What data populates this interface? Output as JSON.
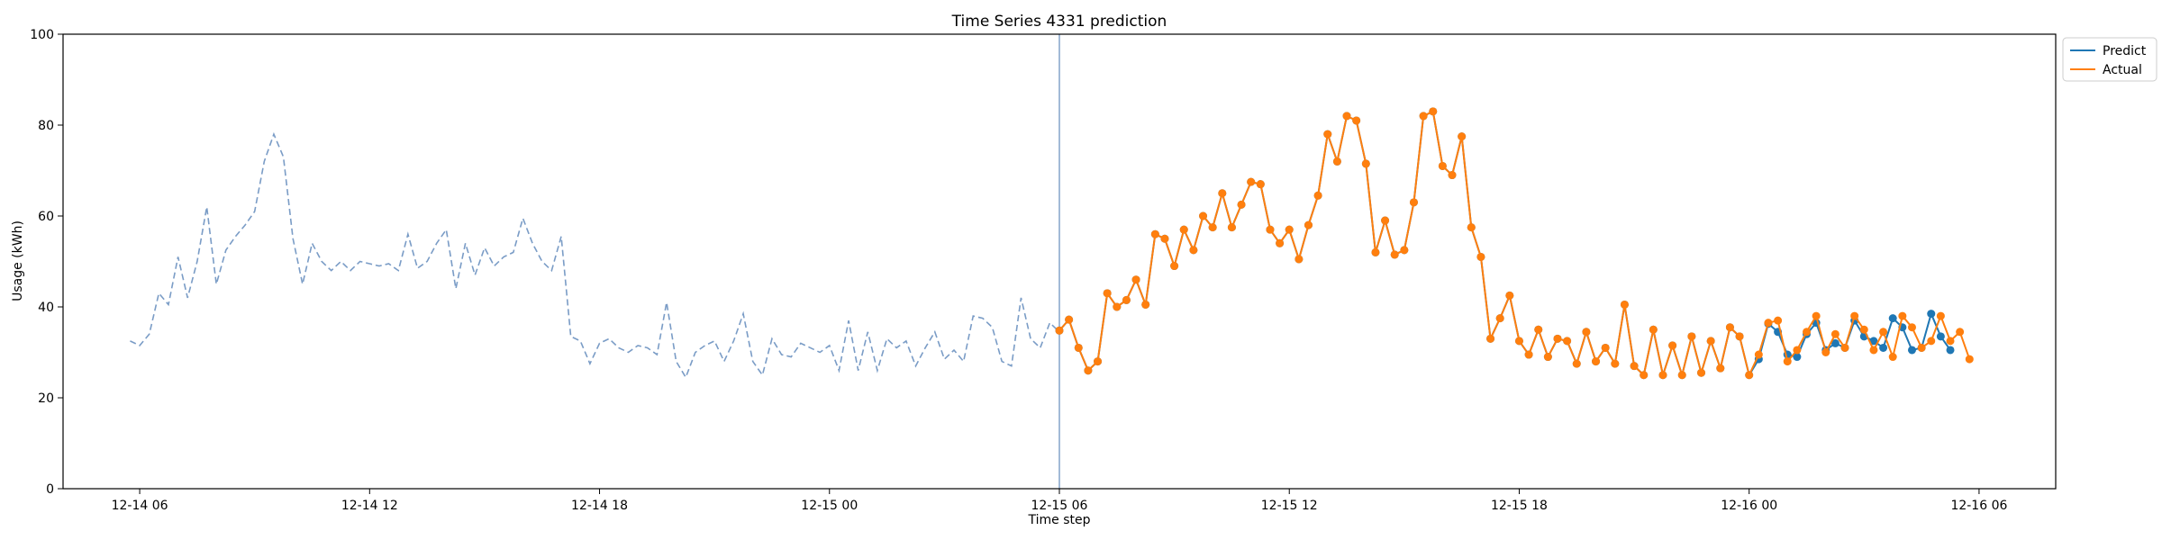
{
  "chart_data": {
    "type": "line",
    "title": "Time Series 4331 prediction",
    "xlabel": "Time step",
    "ylabel": "Usage (kWh)",
    "xlim": [
      "2025-12-14 04:00",
      "2025-12-16 08:00"
    ],
    "ylim": [
      0,
      100
    ],
    "y_ticks": [
      0,
      20,
      40,
      60,
      80,
      100
    ],
    "x_ticks": [
      {
        "t": "2025-12-14 06:00",
        "label": "12-14 06"
      },
      {
        "t": "2025-12-14 12:00",
        "label": "12-14 12"
      },
      {
        "t": "2025-12-14 18:00",
        "label": "12-14 18"
      },
      {
        "t": "2025-12-15 00:00",
        "label": "12-15 00"
      },
      {
        "t": "2025-12-15 06:00",
        "label": "12-15 06"
      },
      {
        "t": "2025-12-15 12:00",
        "label": "12-15 12"
      },
      {
        "t": "2025-12-15 18:00",
        "label": "12-15 18"
      },
      {
        "t": "2025-12-16 00:00",
        "label": "12-16 00"
      },
      {
        "t": "2025-12-16 06:00",
        "label": "12-16 06"
      }
    ],
    "split_time": "2025-12-15 06:00",
    "legend_position": "top-right outside",
    "history": {
      "start": "2025-12-14 05:45",
      "step_minutes": 15,
      "values": [
        32.5,
        31.5,
        34,
        43,
        40.5,
        51,
        42,
        50,
        62,
        45,
        52.5,
        55.5,
        58,
        61,
        72,
        78,
        73,
        55,
        45,
        54,
        50,
        48,
        50,
        48,
        50,
        49.5,
        49,
        49.5,
        48,
        56,
        48.5,
        50,
        54,
        57,
        44,
        54,
        47,
        53,
        49,
        51,
        52,
        59.5,
        54,
        50,
        48,
        55.5,
        33.5,
        32.5,
        27.5,
        32,
        33,
        31,
        30,
        31.5,
        31,
        29.5,
        41,
        28,
        24.5,
        30,
        31.5,
        32.5,
        28,
        32.5,
        38.5,
        28,
        25,
        33,
        29.5,
        29,
        32,
        31,
        30,
        31.5,
        26,
        37,
        26,
        34.5,
        26,
        33,
        31,
        32.5,
        27,
        31,
        34.5,
        28.5,
        30.5,
        28,
        38,
        37.5,
        35.5,
        28,
        27,
        42,
        33,
        31,
        36.5,
        34.5
      ],
      "color": "#7a9cc6"
    },
    "series": [
      {
        "name": "Predict",
        "color": "#1f77b4",
        "start": "2025-12-15 06:00",
        "step_minutes": 15,
        "values": [
          34.8,
          37.2,
          31,
          26,
          28,
          43,
          40,
          41.5,
          46,
          40.5,
          56,
          55,
          49,
          57,
          52.5,
          60,
          57.5,
          65,
          57.5,
          62.5,
          67.5,
          67,
          57,
          54,
          57,
          50.5,
          58,
          64.5,
          78,
          72,
          82,
          81,
          71.5,
          52,
          59,
          51.5,
          52.5,
          63,
          82,
          83,
          71,
          69,
          77.5,
          57.5,
          51,
          33,
          37.5,
          42.5,
          32.5,
          29.5,
          35,
          29,
          33,
          32.5,
          27.5,
          34.5,
          28,
          31,
          27.5,
          40.5,
          27,
          25,
          35,
          25,
          31.5,
          25,
          33.5,
          25.5,
          32.5,
          26.5,
          35.5,
          33.5,
          25,
          28.5,
          36.3,
          34.5,
          29.5,
          29,
          34,
          36.5,
          30.5,
          32,
          31,
          37,
          33.5,
          32.5,
          31,
          37.5,
          35.5,
          30.5,
          31,
          38.5,
          33.5,
          30.5
        ]
      },
      {
        "name": "Actual",
        "color": "#ff7f0e",
        "start": "2025-12-15 06:00",
        "step_minutes": 15,
        "values": [
          34.8,
          37.2,
          31,
          26,
          28,
          43,
          40,
          41.5,
          46,
          40.5,
          56,
          55,
          49,
          57,
          52.5,
          60,
          57.5,
          65,
          57.5,
          62.5,
          67.5,
          67,
          57,
          54,
          57,
          50.5,
          58,
          64.5,
          78,
          72,
          82,
          81,
          71.5,
          52,
          59,
          51.5,
          52.5,
          63,
          82,
          83,
          71,
          69,
          77.5,
          57.5,
          51,
          33,
          37.5,
          42.5,
          32.5,
          29.5,
          35,
          29,
          33,
          32.5,
          27.5,
          34.5,
          28,
          31,
          27.5,
          40.5,
          27,
          25,
          35,
          25,
          31.5,
          25,
          33.5,
          25.5,
          32.5,
          26.5,
          35.5,
          33.5,
          25,
          29.5,
          36.5,
          37,
          28,
          30.5,
          34.5,
          38,
          30,
          34,
          31,
          38,
          35,
          30.5,
          34.5,
          29,
          38,
          35.5,
          31,
          32.5,
          38,
          32.5,
          34.5,
          28.5
        ]
      }
    ]
  }
}
